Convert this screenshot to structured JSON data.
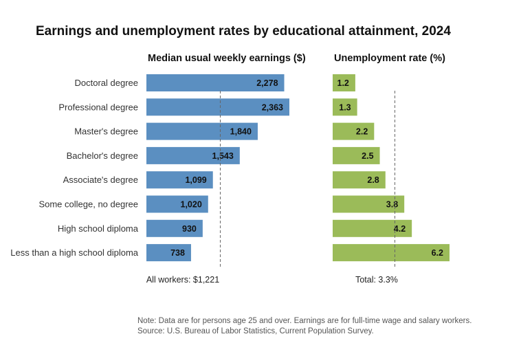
{
  "title": "Earnings and unemployment rates by educational attainment, 2024",
  "note": "Note: Data are for persons age 25 and over. Earnings are for full-time wage and salary workers.",
  "source": "Source: U.S. Bureau of Labor Statistics, Current Population Survey.",
  "chart_data": [
    {
      "type": "bar",
      "orientation": "horizontal",
      "title": "Median usual weekly earnings ($)",
      "categories": [
        "Doctoral degree",
        "Professional degree",
        "Master's degree",
        "Bachelor's degree",
        "Associate's degree",
        "Some college, no degree",
        "High school diploma",
        "Less than a high school diploma"
      ],
      "values": [
        2278,
        2363,
        1840,
        1543,
        1099,
        1020,
        930,
        738
      ],
      "value_labels": [
        "2,278",
        "2,363",
        "1,840",
        "1,543",
        "1,099",
        "1,020",
        "930",
        "738"
      ],
      "reference_line": {
        "value": 1221,
        "label": "All workers: $1,221"
      },
      "color": "#5b8fc1",
      "xlim": [
        0,
        2500
      ]
    },
    {
      "type": "bar",
      "orientation": "horizontal",
      "title": "Unemployment rate (%)",
      "categories": [
        "Doctoral degree",
        "Professional degree",
        "Master's degree",
        "Bachelor's degree",
        "Associate's degree",
        "Some college, no degree",
        "High school diploma",
        "Less than a high school diploma"
      ],
      "values": [
        1.2,
        1.3,
        2.2,
        2.5,
        2.8,
        3.8,
        4.2,
        6.2
      ],
      "value_labels": [
        "1.2",
        "1.3",
        "2.2",
        "2.5",
        "2.8",
        "3.8",
        "4.2",
        "6.2"
      ],
      "reference_line": {
        "value": 3.3,
        "label": "Total: 3.3%"
      },
      "color": "#9bbb59",
      "xlim": [
        0,
        6.5
      ]
    }
  ]
}
